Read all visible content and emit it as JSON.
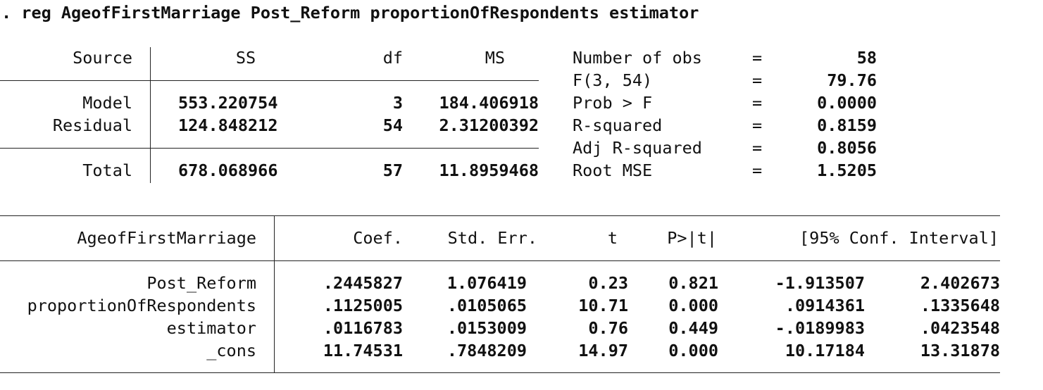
{
  "command": ". reg AgeofFirstMarriage Post_Reform proportionOfRespondents estimator",
  "anova": {
    "headers": [
      "Source",
      "SS",
      "df",
      "MS"
    ],
    "rows": [
      {
        "source": "Model",
        "ss": "553.220754",
        "df": "3",
        "ms": "184.406918"
      },
      {
        "source": "Residual",
        "ss": "124.848212",
        "df": "54",
        "ms": "2.31200392"
      }
    ],
    "total": {
      "source": "Total",
      "ss": "678.068966",
      "df": "57",
      "ms": "11.8959468"
    }
  },
  "stats": [
    {
      "label": "Number of obs",
      "eq": "=",
      "value": "58"
    },
    {
      "label": "F(3, 54)",
      "eq": "=",
      "value": "79.76"
    },
    {
      "label": "Prob > F",
      "eq": "=",
      "value": "0.0000"
    },
    {
      "label": "R-squared",
      "eq": "=",
      "value": "0.8159"
    },
    {
      "label": "Adj R-squared",
      "eq": "=",
      "value": "0.8056"
    },
    {
      "label": "Root MSE",
      "eq": "=",
      "value": "1.5205"
    }
  ],
  "coef": {
    "headers": [
      "AgeofFirstMarriage",
      "Coef.",
      "Std. Err.",
      "t",
      "P>|t|",
      "[95% Conf. Interval]"
    ],
    "rows": [
      {
        "var": "Post_Reform",
        "coef": ".2445827",
        "se": "1.076419",
        "t": "0.23",
        "p": "0.821",
        "lo": "-1.913507",
        "hi": "2.402673"
      },
      {
        "var": "proportionOfRespondents",
        "coef": ".1125005",
        "se": ".0105065",
        "t": "10.71",
        "p": "0.000",
        "lo": ".0914361",
        "hi": ".1335648"
      },
      {
        "var": "estimator",
        "coef": ".0116783",
        "se": ".0153009",
        "t": "0.76",
        "p": "0.449",
        "lo": "-.0189983",
        "hi": ".0423548"
      },
      {
        "var": "_cons",
        "coef": "11.74531",
        "se": ".7848209",
        "t": "14.97",
        "p": "0.000",
        "lo": "10.17184",
        "hi": "13.31878"
      }
    ]
  }
}
